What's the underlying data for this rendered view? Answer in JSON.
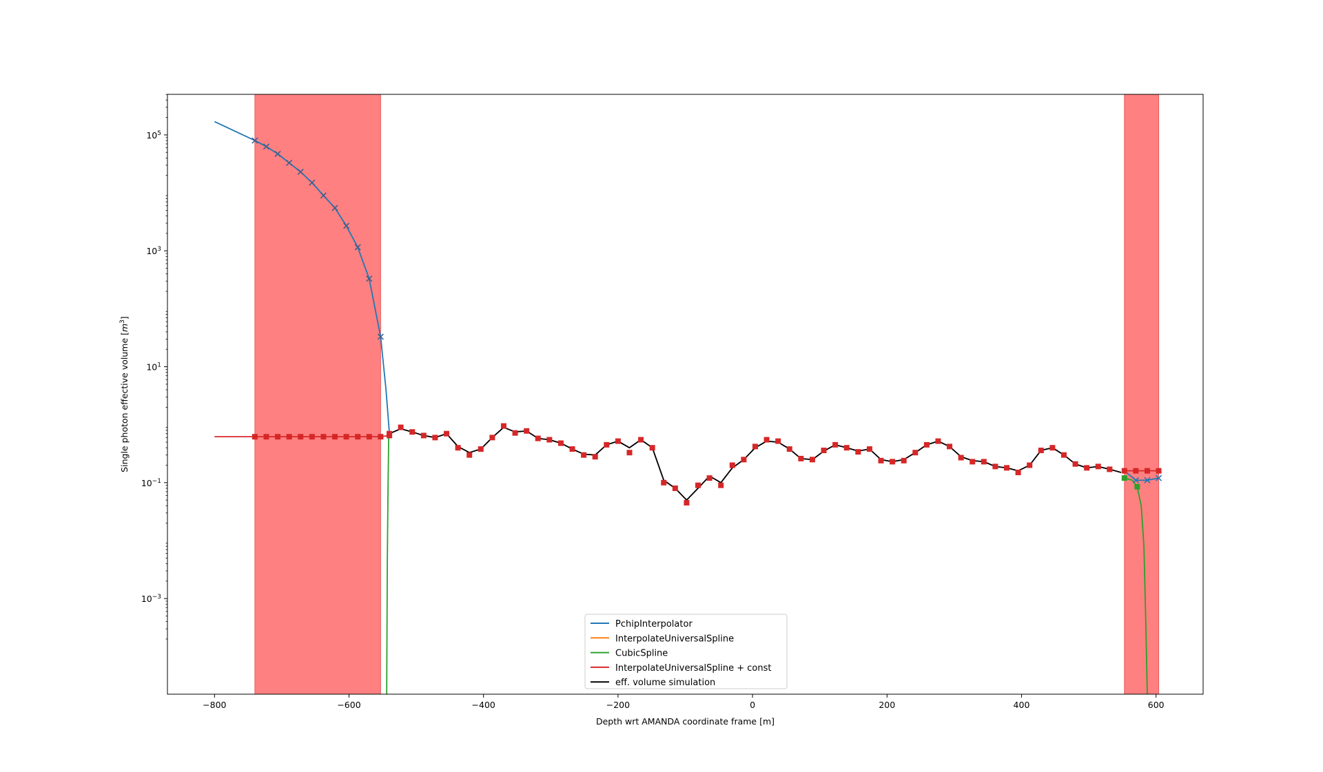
{
  "chart_data": {
    "type": "line",
    "xlabel": "Depth wrt AMANDA coordinate frame [m]",
    "ylabel_prefix": "Single photon effective volume [",
    "ylabel_unit": "m",
    "ylabel_exp": "3",
    "ylabel_suffix": "]",
    "xlim": [
      -870,
      670
    ],
    "ylim_log10": [
      -4.65,
      5.7
    ],
    "y_scale": "log",
    "grid": false,
    "legend_position": "lower-center",
    "x_ticks": [
      {
        "value": -800,
        "label": "−800"
      },
      {
        "value": -600,
        "label": "−600"
      },
      {
        "value": -400,
        "label": "−400"
      },
      {
        "value": -200,
        "label": "−200"
      },
      {
        "value": 0,
        "label": "0"
      },
      {
        "value": 200,
        "label": "200"
      },
      {
        "value": 400,
        "label": "400"
      },
      {
        "value": 600,
        "label": "600"
      }
    ],
    "y_ticks": [
      {
        "exp": 5,
        "base": "10",
        "power": "5"
      },
      {
        "exp": 3,
        "base": "10",
        "power": "3"
      },
      {
        "exp": 1,
        "base": "10",
        "power": "1"
      },
      {
        "exp": -1,
        "base": "10",
        "power": "−1"
      },
      {
        "exp": -3,
        "base": "10",
        "power": "−3"
      }
    ],
    "shaded_regions": [
      {
        "x0": -740,
        "x1": -553,
        "color": "#ff8080"
      },
      {
        "x0": 553,
        "x1": 604,
        "color": "#ff8080"
      }
    ],
    "series": [
      {
        "name": "PchipInterpolator",
        "color": "#1f77b4"
      },
      {
        "name": "InterpolateUniversalSpline",
        "color": "#ff7f0e"
      },
      {
        "name": "CubicSpline",
        "color": "#2ca02c"
      },
      {
        "name": "InterpolateUniversalSpline + const",
        "color": "#d62728"
      },
      {
        "name": "eff. volume simulation",
        "color": "#000000"
      }
    ],
    "pchip_extrapolation": {
      "x": [
        -800,
        -740,
        -723,
        -706,
        -689,
        -672,
        -655,
        -638,
        -621,
        -604,
        -587,
        -570,
        -553,
        -545,
        -540
      ],
      "y": [
        170000,
        80000,
        63000,
        47000,
        33000,
        23000,
        15000,
        9000,
        5500,
        2700,
        1150,
        330,
        33,
        4,
        0.72
      ]
    },
    "blue_right_markers": {
      "x": [
        553,
        570,
        587,
        604
      ],
      "y": [
        0.16,
        0.11,
        0.11,
        0.12
      ]
    },
    "const_extension_left": {
      "x": [
        -800,
        -740,
        -723,
        -706,
        -689,
        -672,
        -655,
        -638,
        -621,
        -604,
        -587,
        -570,
        -553,
        -540
      ],
      "y": [
        0.62,
        0.62,
        0.62,
        0.62,
        0.62,
        0.62,
        0.62,
        0.62,
        0.62,
        0.62,
        0.62,
        0.62,
        0.62,
        0.65
      ]
    },
    "const_extension_right": {
      "x": [
        553,
        570,
        587,
        604
      ],
      "y": [
        0.16,
        0.16,
        0.16,
        0.16
      ]
    },
    "green_left_drop": {
      "x": [
        -541,
        -542,
        -543,
        -544
      ],
      "y": [
        0.6,
        0.08,
        0.005,
        2e-05
      ]
    },
    "green_right_drop": {
      "x": [
        553,
        565,
        572,
        578,
        582,
        585,
        587
      ],
      "y": [
        0.12,
        0.11,
        0.085,
        0.04,
        0.008,
        0.0003,
        2e-05
      ]
    },
    "simulation": {
      "x": [
        -540,
        -523,
        -506,
        -489,
        -472,
        -455,
        -438,
        -421,
        -404,
        -387,
        -370,
        -353,
        -336,
        -319,
        -302,
        -285,
        -268,
        -251,
        -234,
        -217,
        -200,
        -183,
        -166,
        -149,
        -132,
        -115,
        -98,
        -81,
        -64,
        -47,
        -30,
        -13,
        4,
        21,
        38,
        55,
        72,
        89,
        106,
        123,
        140,
        157,
        174,
        191,
        208,
        225,
        242,
        259,
        276,
        293,
        310,
        327,
        344,
        361,
        378,
        395,
        412,
        429,
        446,
        463,
        480,
        497,
        514,
        531,
        548
      ],
      "y": [
        0.7,
        0.85,
        0.75,
        0.65,
        0.6,
        0.7,
        0.42,
        0.33,
        0.38,
        0.6,
        0.9,
        0.75,
        0.78,
        0.58,
        0.55,
        0.48,
        0.38,
        0.31,
        0.3,
        0.45,
        0.52,
        0.4,
        0.55,
        0.4,
        0.11,
        0.08,
        0.05,
        0.08,
        0.13,
        0.1,
        0.18,
        0.25,
        0.4,
        0.52,
        0.5,
        0.38,
        0.26,
        0.25,
        0.35,
        0.45,
        0.4,
        0.35,
        0.38,
        0.25,
        0.23,
        0.25,
        0.33,
        0.45,
        0.52,
        0.42,
        0.28,
        0.24,
        0.23,
        0.19,
        0.18,
        0.16,
        0.2,
        0.36,
        0.4,
        0.3,
        0.21,
        0.18,
        0.19,
        0.17,
        0.15
      ]
    },
    "simulation_markers": {
      "x": [
        -540,
        -523,
        -506,
        -489,
        -472,
        -455,
        -438,
        -421,
        -404,
        -387,
        -370,
        -353,
        -336,
        -319,
        -302,
        -285,
        -268,
        -251,
        -234,
        -217,
        -200,
        -183,
        -166,
        -149,
        -132,
        -115,
        -98,
        -81,
        -64,
        -47,
        -30,
        -13,
        4,
        21,
        38,
        55,
        72,
        89,
        106,
        123,
        140,
        157,
        174,
        191,
        208,
        225,
        242,
        259,
        276,
        293,
        310,
        327,
        344,
        361,
        378,
        395,
        412,
        429,
        446,
        463,
        480,
        497,
        514,
        531
      ],
      "y": [
        0.7,
        0.9,
        0.75,
        0.65,
        0.6,
        0.7,
        0.4,
        0.3,
        0.38,
        0.6,
        0.95,
        0.72,
        0.78,
        0.58,
        0.55,
        0.48,
        0.38,
        0.3,
        0.28,
        0.45,
        0.52,
        0.33,
        0.55,
        0.4,
        0.1,
        0.08,
        0.045,
        0.09,
        0.12,
        0.09,
        0.2,
        0.25,
        0.42,
        0.55,
        0.52,
        0.38,
        0.26,
        0.25,
        0.36,
        0.45,
        0.4,
        0.34,
        0.38,
        0.24,
        0.23,
        0.24,
        0.33,
        0.45,
        0.52,
        0.42,
        0.27,
        0.23,
        0.23,
        0.19,
        0.18,
        0.15,
        0.2,
        0.36,
        0.4,
        0.3,
        0.21,
        0.18,
        0.19,
        0.17
      ]
    }
  }
}
